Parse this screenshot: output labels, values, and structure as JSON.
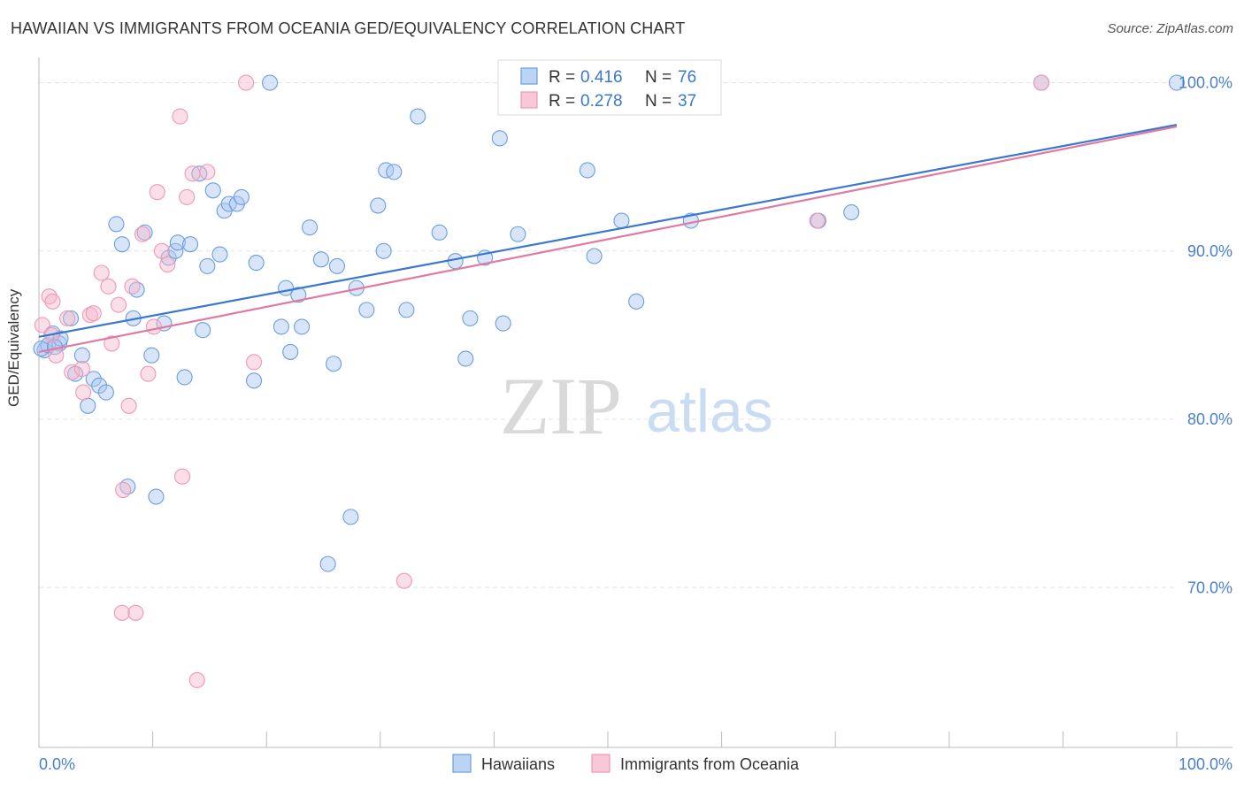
{
  "header": {
    "title": "HAWAIIAN VS IMMIGRANTS FROM OCEANIA GED/EQUIVALENCY CORRELATION CHART",
    "source": "Source: ZipAtlas.com"
  },
  "watermark": {
    "zip": "ZIP",
    "atlas": "atlas"
  },
  "legend_box": {
    "rows": [
      {
        "r_label": "R = ",
        "r_value": "0.416",
        "n_label": "N = ",
        "n_value": "76"
      },
      {
        "r_label": "R = ",
        "r_value": "0.278",
        "n_label": "N = ",
        "n_value": "37"
      }
    ]
  },
  "chart_data": {
    "type": "scatter",
    "title": "HAWAIIAN VS IMMIGRANTS FROM OCEANIA GED/EQUIVALENCY CORRELATION CHART",
    "xlabel": "",
    "ylabel": "GED/Equivalency",
    "xlim": [
      0,
      100
    ],
    "ylim": [
      60.5,
      101.5
    ],
    "x_tick_labels": [
      "0.0%",
      "100.0%"
    ],
    "y_ticks": [
      70,
      80,
      90,
      100
    ],
    "y_tick_labels": [
      "70.0%",
      "80.0%",
      "90.0%",
      "100.0%"
    ],
    "grid": true,
    "legend_position": "bottom",
    "colors": {
      "hawaiians": "#6a9ee0",
      "oceania": "#ef98b4",
      "hawaiians_line": "#3a78cf",
      "oceania_line": "#e07aa0",
      "tick_label": "#4a7fd0"
    },
    "series": [
      {
        "name": "Hawaiians",
        "R": 0.416,
        "N": 76,
        "trend": [
          [
            0,
            84.9
          ],
          [
            100,
            97.5
          ]
        ],
        "points": [
          [
            0.5,
            84.1
          ],
          [
            0.8,
            84.4
          ],
          [
            1.2,
            85.1
          ],
          [
            1.8,
            84.5
          ],
          [
            1.9,
            84.8
          ],
          [
            2.8,
            86.0
          ],
          [
            3.2,
            82.7
          ],
          [
            3.8,
            83.8
          ],
          [
            4.3,
            80.8
          ],
          [
            4.8,
            82.4
          ],
          [
            5.3,
            82.0
          ],
          [
            5.9,
            81.6
          ],
          [
            6.8,
            91.6
          ],
          [
            7.3,
            90.4
          ],
          [
            7.8,
            76.0
          ],
          [
            8.3,
            86.0
          ],
          [
            8.6,
            87.7
          ],
          [
            9.3,
            91.1
          ],
          [
            9.9,
            83.8
          ],
          [
            10.3,
            75.4
          ],
          [
            11.0,
            85.7
          ],
          [
            11.4,
            89.6
          ],
          [
            12.0,
            90.0
          ],
          [
            12.2,
            90.5
          ],
          [
            12.8,
            82.5
          ],
          [
            13.3,
            90.4
          ],
          [
            14.1,
            94.6
          ],
          [
            14.4,
            85.3
          ],
          [
            14.8,
            89.1
          ],
          [
            15.3,
            93.6
          ],
          [
            15.9,
            89.8
          ],
          [
            16.3,
            92.4
          ],
          [
            16.7,
            92.8
          ],
          [
            17.4,
            92.8
          ],
          [
            17.8,
            93.2
          ],
          [
            18.9,
            82.3
          ],
          [
            19.1,
            89.3
          ],
          [
            20.3,
            100.0
          ],
          [
            21.3,
            85.5
          ],
          [
            21.7,
            87.8
          ],
          [
            22.1,
            84.0
          ],
          [
            22.8,
            87.4
          ],
          [
            23.1,
            85.5
          ],
          [
            23.8,
            91.4
          ],
          [
            24.8,
            89.5
          ],
          [
            25.4,
            71.4
          ],
          [
            25.9,
            83.3
          ],
          [
            26.2,
            89.1
          ],
          [
            27.4,
            74.2
          ],
          [
            27.9,
            87.8
          ],
          [
            28.8,
            86.5
          ],
          [
            29.8,
            92.7
          ],
          [
            30.3,
            90.0
          ],
          [
            30.5,
            94.8
          ],
          [
            31.2,
            94.7
          ],
          [
            32.3,
            86.5
          ],
          [
            33.3,
            98.0
          ],
          [
            35.2,
            91.1
          ],
          [
            36.6,
            89.4
          ],
          [
            37.5,
            83.6
          ],
          [
            37.9,
            86.0
          ],
          [
            39.2,
            89.6
          ],
          [
            40.5,
            96.7
          ],
          [
            40.8,
            85.7
          ],
          [
            42.1,
            91.0
          ],
          [
            48.2,
            94.8
          ],
          [
            48.8,
            89.7
          ],
          [
            51.2,
            91.8
          ],
          [
            52.5,
            87.0
          ],
          [
            57.3,
            91.8
          ],
          [
            68.5,
            91.8
          ],
          [
            71.4,
            92.3
          ],
          [
            88.1,
            100.0
          ],
          [
            100.0,
            100.0
          ],
          [
            0.2,
            84.2
          ],
          [
            1.4,
            84.3
          ]
        ]
      },
      {
        "name": "Immigrants from Oceania",
        "R": 0.278,
        "N": 37,
        "trend": [
          [
            0,
            84.0
          ],
          [
            100,
            97.4
          ]
        ],
        "points": [
          [
            0.3,
            85.6
          ],
          [
            0.9,
            87.3
          ],
          [
            1.2,
            87.0
          ],
          [
            1.5,
            83.8
          ],
          [
            2.5,
            86.0
          ],
          [
            2.9,
            82.8
          ],
          [
            3.8,
            83.0
          ],
          [
            3.9,
            81.6
          ],
          [
            4.5,
            86.2
          ],
          [
            4.8,
            86.3
          ],
          [
            5.5,
            88.7
          ],
          [
            6.1,
            87.9
          ],
          [
            6.4,
            84.5
          ],
          [
            7.0,
            86.8
          ],
          [
            7.4,
            75.8
          ],
          [
            7.3,
            68.5
          ],
          [
            7.9,
            80.8
          ],
          [
            8.2,
            87.9
          ],
          [
            8.5,
            68.5
          ],
          [
            9.1,
            91.0
          ],
          [
            9.6,
            82.7
          ],
          [
            10.1,
            85.5
          ],
          [
            10.4,
            93.5
          ],
          [
            10.8,
            90.0
          ],
          [
            11.3,
            89.2
          ],
          [
            12.4,
            98.0
          ],
          [
            12.6,
            76.6
          ],
          [
            13.0,
            93.2
          ],
          [
            13.5,
            94.6
          ],
          [
            13.9,
            64.5
          ],
          [
            14.8,
            94.7
          ],
          [
            18.2,
            100.0
          ],
          [
            18.9,
            83.4
          ],
          [
            32.1,
            70.4
          ],
          [
            68.4,
            91.8
          ],
          [
            88.1,
            100.0
          ],
          [
            1.1,
            85.0
          ]
        ]
      }
    ]
  },
  "bottom_legend": {
    "items": [
      {
        "label": "Hawaiians"
      },
      {
        "label": "Immigrants from Oceania"
      }
    ]
  }
}
